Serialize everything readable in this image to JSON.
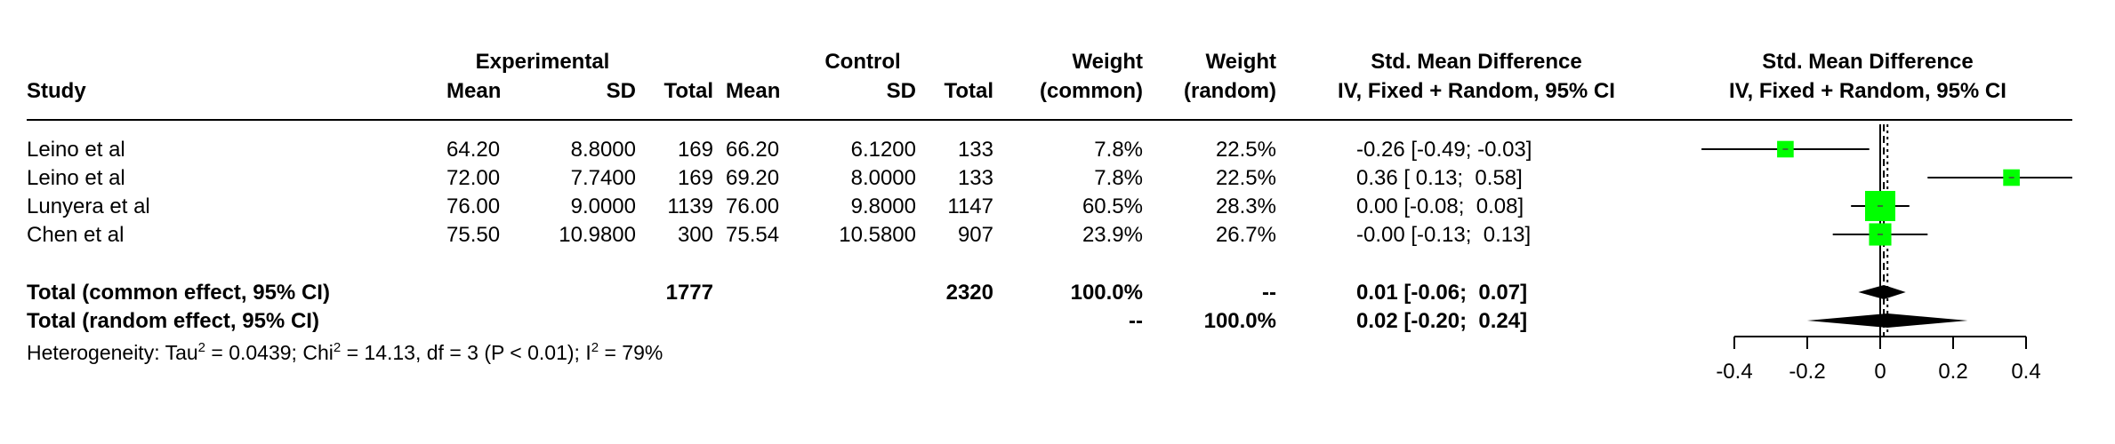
{
  "header": {
    "study": "Study",
    "experimental": "Experimental",
    "control": "Control",
    "mean": "Mean",
    "sd": "SD",
    "total": "Total",
    "weight": "Weight",
    "common": "(common)",
    "random": "(random)",
    "smd_title": "Std. Mean Difference",
    "smd_method": "IV, Fixed + Random, 95% CI"
  },
  "rows": [
    {
      "study": "Leino et al",
      "e_mean": "64.20",
      "e_sd": "8.8000",
      "e_total": "169",
      "c_mean": "66.20",
      "c_sd": "6.1200",
      "c_total": "133",
      "w_common": "7.8%",
      "w_random": "22.5%",
      "ci_text": "-0.26 [-0.49; -0.03]"
    },
    {
      "study": "Leino et al",
      "e_mean": "72.00",
      "e_sd": "7.7400",
      "e_total": "169",
      "c_mean": "69.20",
      "c_sd": "8.0000",
      "c_total": "133",
      "w_common": "7.8%",
      "w_random": "22.5%",
      "ci_text": "0.36 [ 0.13;  0.58]"
    },
    {
      "study": "Lunyera et al",
      "e_mean": "76.00",
      "e_sd": "9.0000",
      "e_total": "1139",
      "c_mean": "76.00",
      "c_sd": "9.8000",
      "c_total": "1147",
      "w_common": "60.5%",
      "w_random": "28.3%",
      "ci_text": "0.00 [-0.08;  0.08]"
    },
    {
      "study": "Chen et al",
      "e_mean": "75.50",
      "e_sd": "10.9800",
      "e_total": "300",
      "c_mean": "75.54",
      "c_sd": "10.5800",
      "c_total": "907",
      "w_common": "23.9%",
      "w_random": "26.7%",
      "ci_text": "-0.00 [-0.13;  0.13]"
    }
  ],
  "totals": [
    {
      "label": "Total (common effect, 95% CI)",
      "e_total": "1777",
      "c_total": "2320",
      "w_common": "100.0%",
      "w_random": "--",
      "ci_text": "0.01 [-0.06;  0.07]"
    },
    {
      "label": "Total (random effect, 95% CI)",
      "w_common": "--",
      "w_random": "100.0%",
      "ci_text": "0.02 [-0.20;  0.24]"
    }
  ],
  "heterogeneity": {
    "prefix": "Heterogeneity: Tau",
    "tau_sup": "2",
    "tau_val": " = 0.0439; Chi",
    "chi_sup": "2",
    "chi_val": " = 14.13, df = 3 (P < 0.01); I",
    "i_sup": "2",
    "i_val": " = 79%"
  },
  "chart_data": {
    "type": "forest",
    "xlabel": "",
    "xlim": [
      -0.4,
      0.4
    ],
    "ticks": [
      -0.4,
      -0.2,
      0,
      0.2,
      0.4
    ],
    "tick_labels": [
      "-0.4",
      "-0.2",
      "0",
      "0.2",
      "0.4"
    ],
    "null_value": 0,
    "studies": [
      {
        "name": "Leino et al",
        "estimate": -0.26,
        "lower": -0.49,
        "upper": -0.03,
        "weight_common": 7.8
      },
      {
        "name": "Leino et al",
        "estimate": 0.36,
        "lower": 0.13,
        "upper": 0.58,
        "weight_common": 7.8
      },
      {
        "name": "Lunyera et al",
        "estimate": 0.0,
        "lower": -0.08,
        "upper": 0.08,
        "weight_common": 60.5
      },
      {
        "name": "Chen et al",
        "estimate": -0.0,
        "lower": -0.13,
        "upper": 0.13,
        "weight_common": 23.9
      }
    ],
    "pooled": [
      {
        "name": "Total (common effect, 95% CI)",
        "estimate": 0.01,
        "lower": -0.06,
        "upper": 0.07
      },
      {
        "name": "Total (random effect, 95% CI)",
        "estimate": 0.02,
        "lower": -0.2,
        "upper": 0.24
      }
    ],
    "marker_color": "#00ff00",
    "diamond_color": "#000000"
  }
}
